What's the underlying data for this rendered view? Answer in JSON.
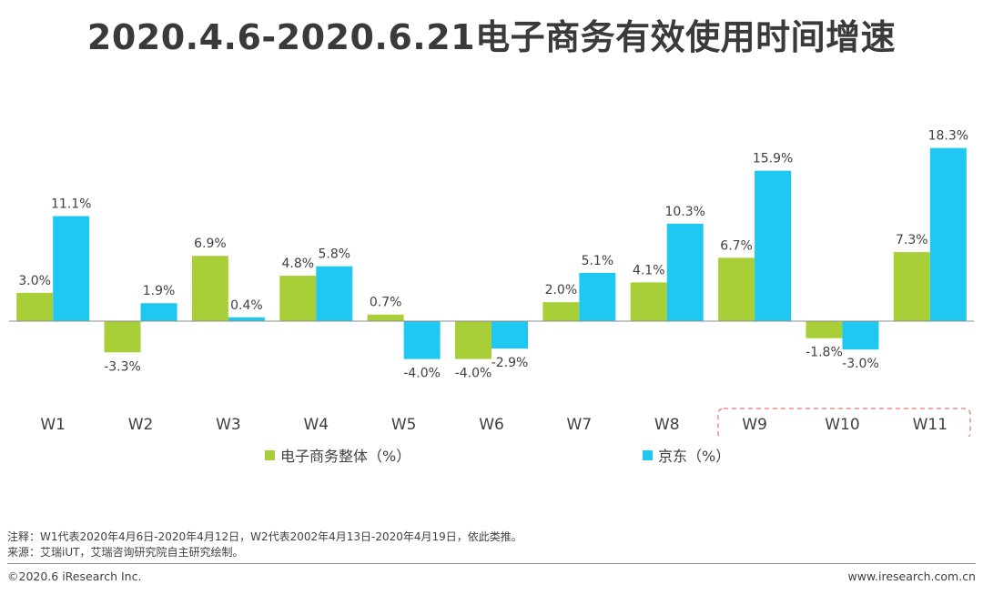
{
  "title": "2020.4.6-2020.6.21电子商务有效使用时间增速",
  "chart_data": {
    "type": "bar",
    "categories": [
      "W1",
      "W2",
      "W3",
      "W4",
      "W5",
      "W6",
      "W7",
      "W8",
      "W9",
      "W10",
      "W11"
    ],
    "series": [
      {
        "name": "电子商务整体（%）",
        "color": "#a9cf38",
        "values": [
          3.0,
          -3.3,
          6.9,
          4.8,
          0.7,
          -4.0,
          2.0,
          4.1,
          6.7,
          -1.8,
          7.3
        ],
        "labels": [
          "3.0%",
          "-3.3%",
          "6.9%",
          "4.8%",
          "0.7%",
          "-4.0%",
          "2.0%",
          "4.1%",
          "6.7%",
          "-1.8%",
          "7.3%"
        ]
      },
      {
        "name": "京东（%）",
        "color": "#1ec8f0",
        "values": [
          11.1,
          1.9,
          0.4,
          5.8,
          -4.0,
          -2.9,
          5.1,
          10.3,
          15.9,
          -3.0,
          18.3
        ],
        "labels": [
          "11.1%",
          "1.9%",
          "0.4%",
          "5.8%",
          "-4.0%",
          "-2.9%",
          "5.1%",
          "10.3%",
          "15.9%",
          "-3.0%",
          "18.3%"
        ]
      }
    ],
    "highlight_categories": [
      "W9",
      "W10",
      "W11"
    ],
    "highlight_color": "#e88a8a",
    "grid": false,
    "legend_position": "bottom"
  },
  "note": "注释：W1代表2020年4月6日-2020年4月12日，W2代表2002年4月13日-2020年4月19日，依此类推。",
  "source": "来源：艾瑞iUT，艾瑞咨询研究院自主研究绘制。",
  "footer": {
    "copyright": "©2020.6 iResearch Inc.",
    "website": "www.iresearch.com.cn"
  }
}
